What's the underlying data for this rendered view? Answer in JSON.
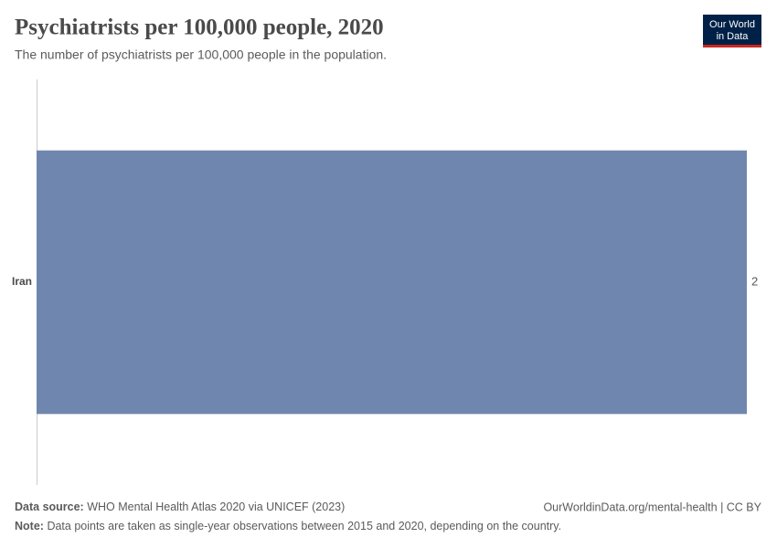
{
  "chart_data": {
    "type": "bar",
    "orientation": "horizontal",
    "title": "Psychiatrists per 100,000 people, 2020",
    "subtitle": "The number of psychiatrists per 100,000 people in the population.",
    "categories": [
      "Iran"
    ],
    "values": [
      2
    ],
    "color": "#6f87af"
  },
  "logo": {
    "line1": "Our World",
    "line2": "in Data"
  },
  "footer": {
    "source_label": "Data source:",
    "source": "WHO Mental Health Atlas 2020 via UNICEF (2023)",
    "url": "OurWorldinData.org/mental-health | CC BY",
    "note_label": "Note:",
    "note": "Data points are taken as single-year observations between 2015 and 2020, depending on the country."
  }
}
